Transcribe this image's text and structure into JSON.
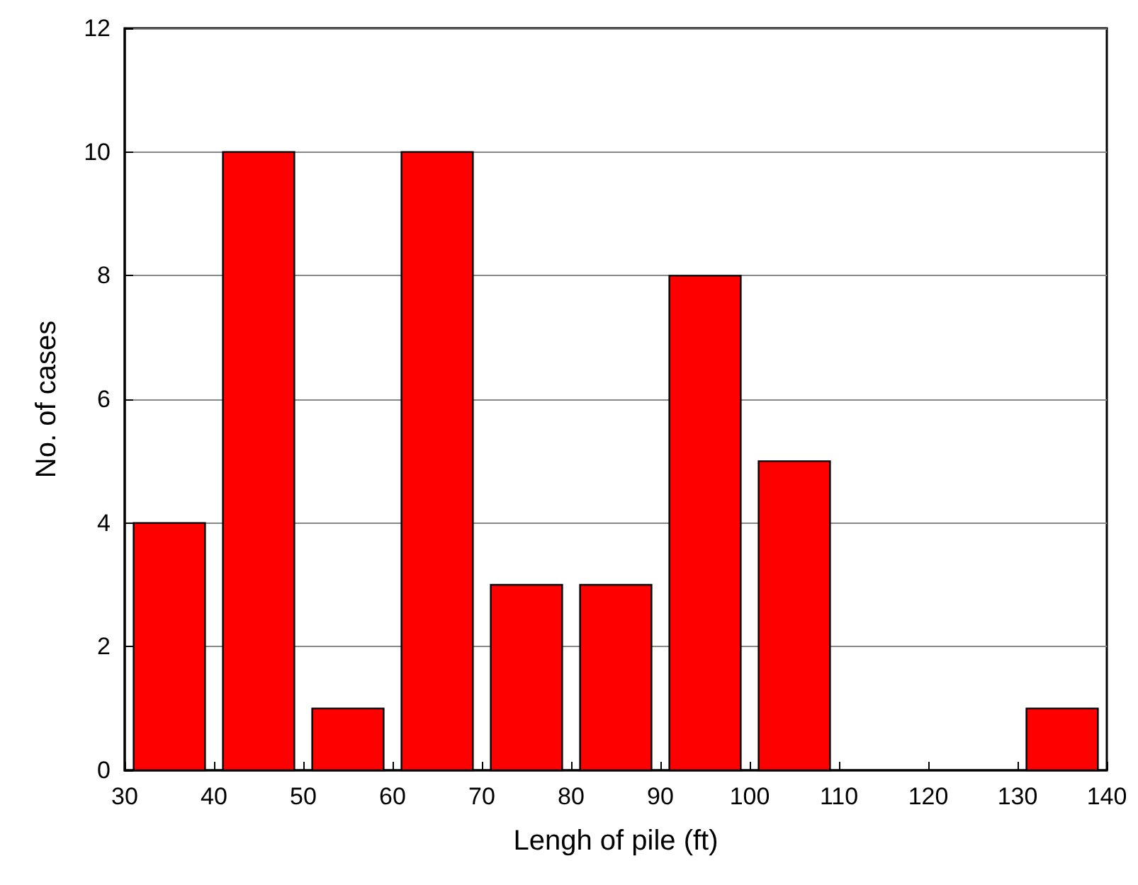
{
  "chart_data": {
    "type": "histogram",
    "xlabel": "Lengh of pile (ft)",
    "ylabel": "No. of cases",
    "bins": [
      30,
      40,
      50,
      60,
      70,
      80,
      90,
      100,
      110,
      120,
      130,
      140
    ],
    "values": [
      4,
      10,
      1,
      10,
      3,
      3,
      8,
      5,
      0,
      0,
      1
    ],
    "color": "#ff0000",
    "xlim": [
      30,
      140
    ],
    "xticks": [
      30,
      40,
      50,
      60,
      70,
      80,
      90,
      100,
      110,
      120,
      130,
      140
    ],
    "ylim": [
      0,
      12
    ],
    "yticks": [
      0,
      2,
      4,
      6,
      8,
      10,
      12
    ],
    "grid": "y"
  }
}
